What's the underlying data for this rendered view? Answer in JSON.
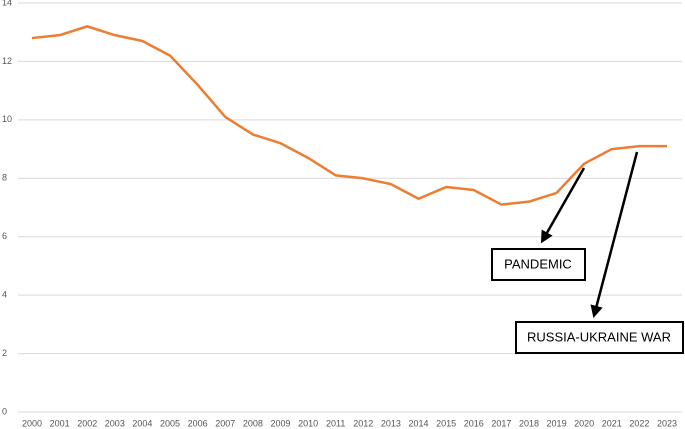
{
  "chart_data": {
    "type": "line",
    "categories": [
      "2000",
      "2001",
      "2002",
      "2003",
      "2004",
      "2005",
      "2006",
      "2007",
      "2008",
      "2009",
      "2010",
      "2011",
      "2012",
      "2013",
      "2014",
      "2015",
      "2016",
      "2017",
      "2018",
      "2019",
      "2020",
      "2021",
      "2022",
      "2023"
    ],
    "series": [
      {
        "color": "#ed7d31",
        "values": [
          12.8,
          12.9,
          13.2,
          12.9,
          12.7,
          12.2,
          11.2,
          10.1,
          9.5,
          9.2,
          8.7,
          8.1,
          8.0,
          7.8,
          7.3,
          7.7,
          7.6,
          7.1,
          7.2,
          7.5,
          8.5,
          9.0,
          9.1,
          9.1
        ]
      }
    ],
    "ylim": [
      0,
      14
    ],
    "yticks": [
      0,
      2,
      4,
      6,
      8,
      10,
      12,
      14
    ],
    "grid": true,
    "annotations": [
      {
        "text": "PANDEMIC"
      },
      {
        "text": "RUSSIA-UKRAINE WAR"
      }
    ]
  }
}
